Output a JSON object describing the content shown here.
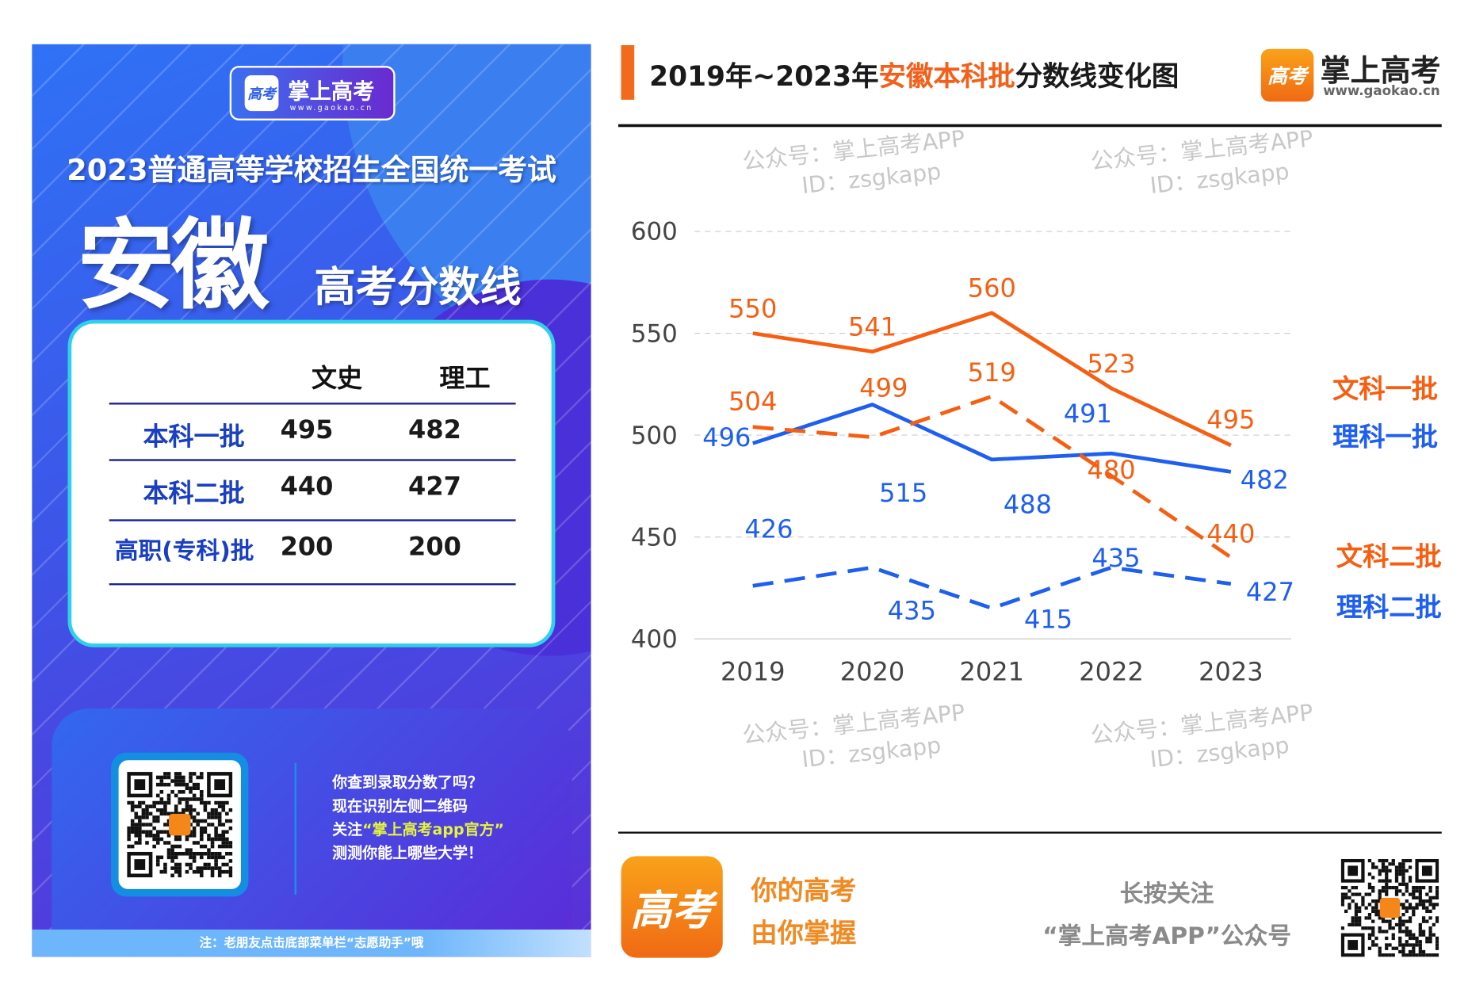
{
  "poster": {
    "brand": "掌上高考",
    "brand_url": "www.gaokao.cn",
    "logo_glyph": "高考",
    "exam_title": "2023普通高等学校招生全国统一考试",
    "province": "安徽",
    "subtitle": "高考分数线",
    "table": {
      "headers": [
        "文史",
        "理工"
      ],
      "rows": [
        {
          "label": "本科一批",
          "wenshi": "495",
          "ligong": "482"
        },
        {
          "label": "本科二批",
          "wenshi": "440",
          "ligong": "427"
        },
        {
          "label": "高职(专科)批",
          "wenshi": "200",
          "ligong": "200"
        }
      ]
    },
    "promo": {
      "line1": "你查到录取分数了吗？",
      "line2": "现在识别左侧二维码",
      "line3_pre": "关注",
      "line3_hl": "“掌上高考app官方”",
      "line4": "测测你能上哪些大学！"
    },
    "note": "注：老朋友点击底部菜单栏“志愿助手”哦"
  },
  "header": {
    "title_pre": "2019年~2023年",
    "title_hl": "安徽本科批",
    "title_post": "分数线变化图",
    "brand": "掌上高考",
    "brand_url": "www.gaokao.cn",
    "logo_glyph": "高考"
  },
  "watermark": {
    "line1": "公众号：掌上高考APP",
    "line2": "ID：zsgkapp"
  },
  "chart_data": {
    "type": "line",
    "title": "2019年~2023年安徽本科批分数线变化图",
    "x": [
      "2019",
      "2020",
      "2021",
      "2022",
      "2023"
    ],
    "ylim": [
      400,
      600
    ],
    "yticks": [
      "400",
      "450",
      "500",
      "550",
      "600"
    ],
    "grid": true,
    "legend_placement": "right",
    "series": [
      {
        "name": "文科一批",
        "color": "#f65f12",
        "dashed": false,
        "values": [
          550,
          541,
          560,
          523,
          495
        ]
      },
      {
        "name": "理科一批",
        "color": "#1f5ff0",
        "dashed": false,
        "values": [
          496,
          515,
          488,
          491,
          482
        ]
      },
      {
        "name": "文科二批",
        "color": "#f65f12",
        "dashed": true,
        "values": [
          504,
          499,
          519,
          480,
          440
        ]
      },
      {
        "name": "理科二批",
        "color": "#1f5ff0",
        "dashed": true,
        "values": [
          426,
          435,
          415,
          435,
          427
        ]
      }
    ]
  },
  "footer": {
    "slogan1": "你的高考",
    "slogan2": "由你掌握",
    "follow1": "长按关注",
    "follow2": "“掌上高考APP”公众号",
    "logo_glyph": "高考"
  }
}
